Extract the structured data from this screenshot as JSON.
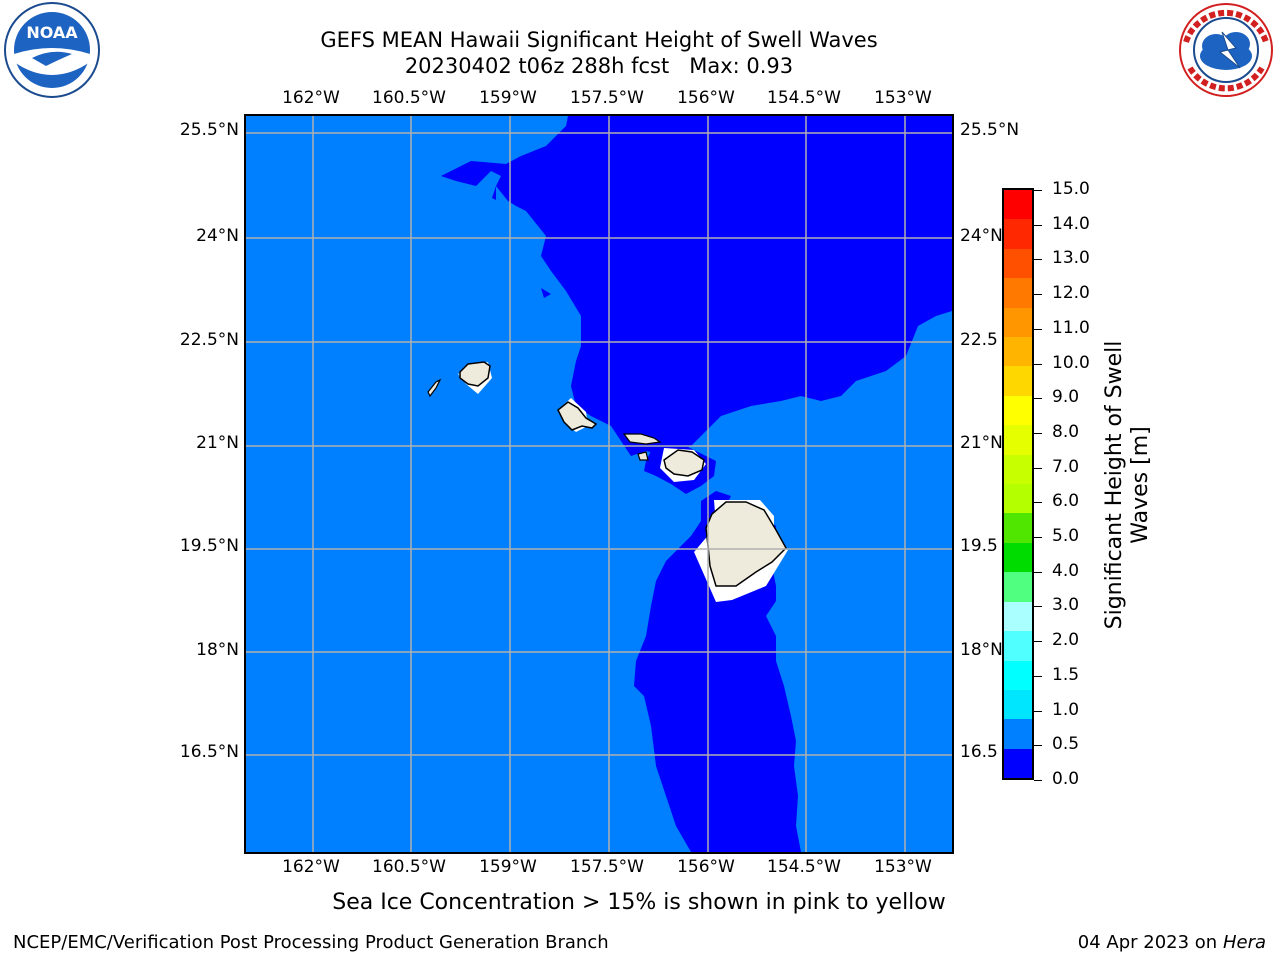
{
  "title": {
    "line1": "GEFS MEAN Hawaii Significant Height of Swell Waves",
    "line2": "20230402 t06z 288h fcst   Max: 0.93"
  },
  "logos": {
    "left": "noaa-logo",
    "right": "national-weather-service-logo"
  },
  "map": {
    "lon_ticks": [
      "162°W",
      "160.5°W",
      "159°W",
      "157.5°W",
      "156°W",
      "154.5°W",
      "153°W"
    ],
    "lat_ticks": [
      "25.5°N",
      "24°N",
      "22.5°N",
      "21°N",
      "19.5°N",
      "18°N",
      "16.5°N"
    ],
    "lat_ticks_right": [
      "25.5°N",
      "24°N",
      "22.5",
      "21°N",
      "19.5",
      "18°N",
      "16.5"
    ],
    "colors": {
      "band_0_0_5": "#0000ff",
      "band_0_5_1_0": "#0080ff",
      "land": "#efebdc",
      "grid": "#b0b0b0"
    }
  },
  "colorbar": {
    "label": "Significant Height of Swell Waves [m]",
    "label_line1": "Significant Height of Swell",
    "label_line2": "Waves [m]",
    "ticks": [
      "15.0",
      "14.0",
      "13.0",
      "12.0",
      "11.0",
      "10.0",
      "9.0",
      "8.0",
      "7.0",
      "6.0",
      "5.0",
      "4.0",
      "3.0",
      "2.0",
      "1.5",
      "1.0",
      "0.5",
      "0.0"
    ],
    "colors_top_to_bottom": [
      "#ff0000",
      "#ff2800",
      "#ff5000",
      "#ff7800",
      "#ff9600",
      "#ffb400",
      "#ffd700",
      "#ffff00",
      "#e6ff00",
      "#c8ff00",
      "#b4ff00",
      "#50e600",
      "#00dc00",
      "#50ff80",
      "#aaffff",
      "#50ffff",
      "#00ffff",
      "#00e6ff",
      "#0080ff",
      "#0000ff"
    ]
  },
  "footer": {
    "ice_note": "Sea Ice Concentration > 15% is shown in pink to yellow",
    "branch": "NCEP/EMC/Verification Post Processing Product Generation Branch",
    "date_prefix": "04 Apr 2023 on ",
    "machine": "Hera"
  }
}
